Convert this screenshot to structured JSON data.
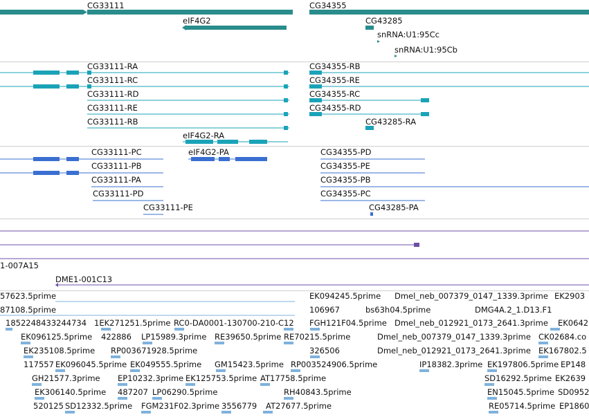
{
  "colors": {
    "gene": "#2a8c8c",
    "transcript": "#1aa3b8",
    "cds": "#3a6fd1",
    "contig": "#6b4fa8",
    "est": "#7fb2dd",
    "divider": "#cfcfcf",
    "text": "#111111"
  },
  "gene_track": {
    "labels": [
      "CG33111",
      "CG34355",
      "eIF4G2",
      "CG43285",
      "snRNA:U1:95Cc",
      "snRNA:U1:95Cb"
    ]
  },
  "transcript_track": {
    "labels": [
      "CG33111-RA",
      "CG33111-RC",
      "CG33111-RD",
      "CG33111-RE",
      "CG33111-RB",
      "eIF4G2-RA",
      "CG34355-RB",
      "CG34355-RE",
      "CG34355-RC",
      "CG34355-RD",
      "CG43285-RA"
    ]
  },
  "cds_track": {
    "labels": [
      "CG33111-PC",
      "eIF4G2-PA",
      "CG33111-PB",
      "CG33111-PA",
      "CG33111-PD",
      "CG33111-PE",
      "CG34355-PD",
      "CG34355-PE",
      "CG34355-PB",
      "CG34355-PC",
      "CG43285-PA"
    ]
  },
  "clone_track": {
    "labels": [
      "1-007A15",
      "DME1-001C13"
    ]
  },
  "est_track": {
    "labels": [
      "57623.5prime",
      "EK094245.5prime",
      "Dmel_neb_007379_0147_1339.3prime",
      "EK2903",
      "87108.5prime",
      "106967",
      "bs63h04.5prime",
      "DMG4A.2_1.D13.F1",
      "1852248433244734",
      "1EK271251.5prime",
      "RC0-DA0001-130700-210-C12",
      "FGH121F04.5prime",
      "Dmel_neb_012921_0173_2641.3prime",
      "EK0642",
      "EK096125.5prime",
      "422886",
      "LP15989.3prime",
      "RE39650.5prime",
      "RE70215.5prime",
      "Dmel_neb_007379_0147_1339.3prime",
      "CK02684.co",
      "EK235108.5prime",
      "RP003671928.5prime",
      "326506",
      "Dmel_neb_012921_0173_2641.3prime",
      "EK167802.5",
      "117557",
      "EK096045.5prime",
      "EK049555.5prime",
      "GM15423.5prime",
      "RP003524906.5prime",
      "IP18382.3prime",
      "EK197806.5prime",
      "EP148",
      "GH21577.3prime",
      "EP10232.3prime",
      "EK125753.5prime",
      "AT17758.5prime",
      "SD16292.5prime",
      "EK2639",
      "EK306140.5prime",
      "487207",
      "LP06290.5prime",
      "RH40843.5prime",
      "EN15045.5prime",
      "SD0952",
      "520125",
      "SD12332.5prime",
      "FGM231F02.3prime",
      "3556779",
      "AT27677.5prime",
      "RE05714.5prime",
      "EP1860"
    ]
  }
}
